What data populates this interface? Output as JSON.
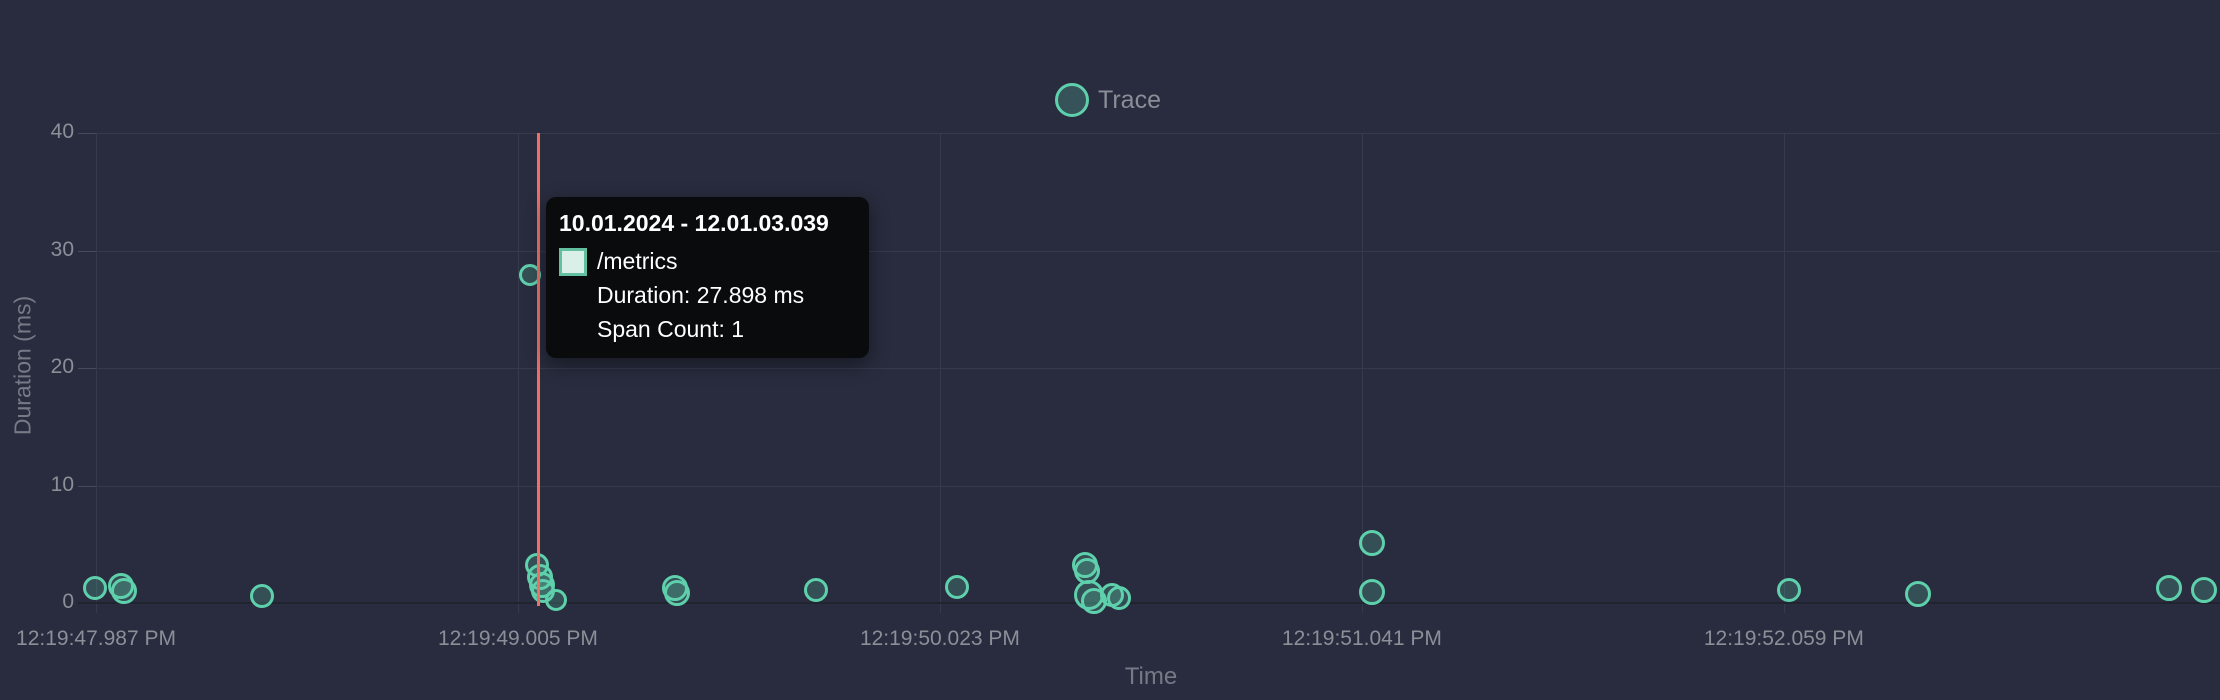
{
  "legend": {
    "label": "Trace"
  },
  "tooltip": {
    "title": "10.01.2024 - 12.01.03.039",
    "series_label": "/metrics",
    "duration_line": "Duration: 27.898 ms",
    "span_count_line": "Span Count: 1"
  },
  "chart_data": {
    "type": "scatter",
    "series": [
      {
        "name": "Trace"
      }
    ],
    "xlabel": "Time",
    "ylabel": "Duration (ms)",
    "ylim": [
      0,
      40
    ],
    "grid": true,
    "legend_position": "top-center",
    "x_ticks": [
      {
        "t": 0.0,
        "label": "12:19:47.987 PM"
      },
      {
        "t": 1.018,
        "label": "12:19:49.005 PM"
      },
      {
        "t": 2.036,
        "label": "12:19:50.023 PM"
      },
      {
        "t": 3.054,
        "label": "12:19:51.041 PM"
      },
      {
        "t": 4.072,
        "label": "12:19:52.059 PM"
      }
    ],
    "y_ticks": [
      {
        "ms": 0,
        "label": "0"
      },
      {
        "ms": 10,
        "label": "10"
      },
      {
        "ms": 20,
        "label": "20"
      },
      {
        "ms": 30,
        "label": "30"
      },
      {
        "ms": 40,
        "label": "40"
      }
    ],
    "points": [
      {
        "t": -0.002,
        "ms": 1.3,
        "r": 12
      },
      {
        "t": 0.06,
        "ms": 1.45,
        "r": 13
      },
      {
        "t": 0.068,
        "ms": 1.0,
        "r": 13
      },
      {
        "t": 0.401,
        "ms": 0.6,
        "r": 12
      },
      {
        "t": 1.047,
        "ms": 27.898,
        "r": 11
      },
      {
        "t": 1.064,
        "ms": 3.2,
        "r": 12
      },
      {
        "t": 1.071,
        "ms": 2.2,
        "r": 13
      },
      {
        "t": 1.076,
        "ms": 1.5,
        "r": 13
      },
      {
        "t": 1.079,
        "ms": 1.0,
        "r": 12
      },
      {
        "t": 1.11,
        "ms": 0.25,
        "r": 11
      },
      {
        "t": 1.397,
        "ms": 1.3,
        "r": 13
      },
      {
        "t": 1.402,
        "ms": 0.85,
        "r": 13
      },
      {
        "t": 1.737,
        "ms": 1.1,
        "r": 12
      },
      {
        "t": 2.077,
        "ms": 1.35,
        "r": 12
      },
      {
        "t": 2.386,
        "ms": 3.2,
        "r": 13
      },
      {
        "t": 2.391,
        "ms": 2.7,
        "r": 13
      },
      {
        "t": 2.396,
        "ms": 0.7,
        "r": 15
      },
      {
        "t": 2.408,
        "ms": 0.2,
        "r": 13
      },
      {
        "t": 2.451,
        "ms": 0.7,
        "r": 12
      },
      {
        "t": 2.468,
        "ms": 0.45,
        "r": 12
      },
      {
        "t": 3.079,
        "ms": 5.1,
        "r": 13
      },
      {
        "t": 3.079,
        "ms": 0.95,
        "r": 13
      },
      {
        "t": 4.085,
        "ms": 1.1,
        "r": 12
      },
      {
        "t": 4.396,
        "ms": 0.75,
        "r": 13
      },
      {
        "t": 5.0,
        "ms": 1.3,
        "r": 13
      },
      {
        "t": 5.086,
        "ms": 1.1,
        "r": 13
      }
    ],
    "hover_line_t": 1.066,
    "hovered_point": {
      "t": 1.047,
      "ms": 27.898
    },
    "colors": {
      "background": "#282c3e",
      "accent_teal": "#5fd0ac",
      "point_fill": "rgba(95,208,172,0.22)",
      "hover_line_red": "#ee6f66",
      "gridline": "#353a4d",
      "axis_text": "#8c8f98",
      "axis_title_text": "#767a87",
      "tooltip_background": "#0a0b0d",
      "tooltip_text": "#ffffff",
      "swatch_fill": "#d9efe7"
    }
  }
}
